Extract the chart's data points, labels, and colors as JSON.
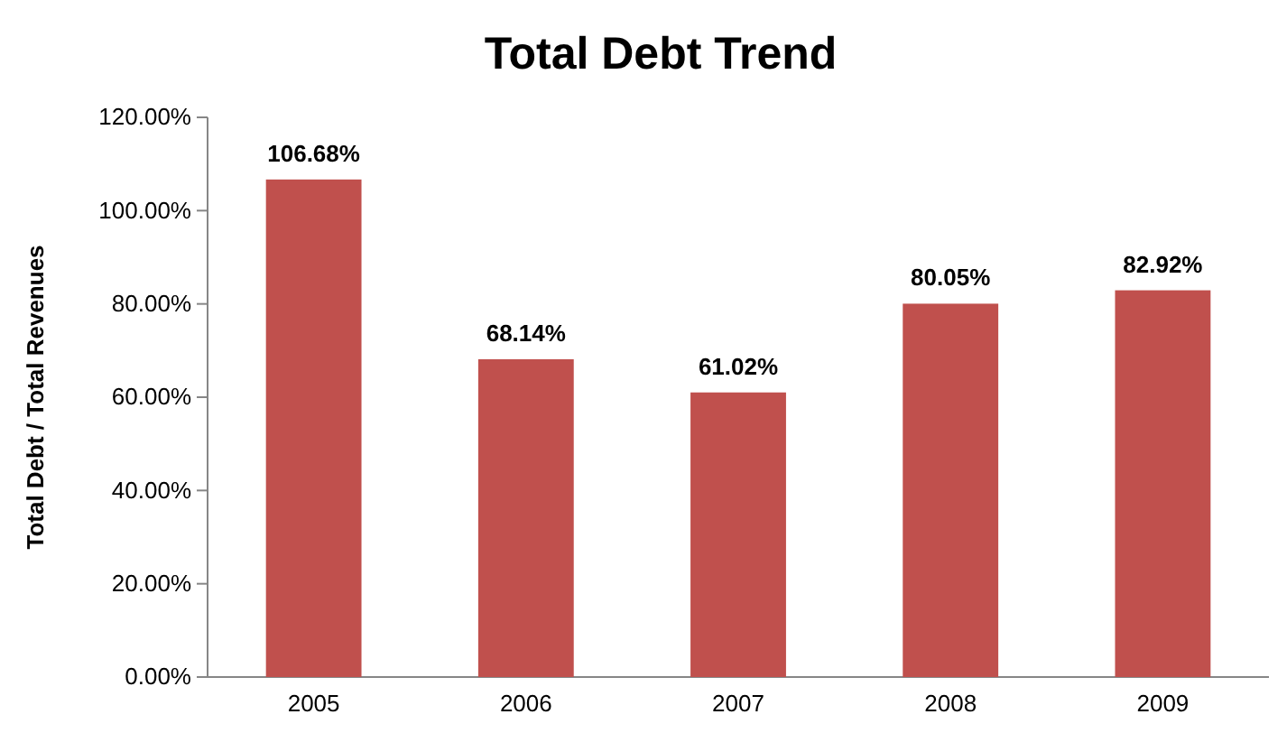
{
  "chart_data": {
    "type": "bar",
    "title": "Total Debt Trend",
    "ylabel": "Total Debt / Total Revenues",
    "categories": [
      "2005",
      "2006",
      "2007",
      "2008",
      "2009"
    ],
    "values": [
      106.68,
      68.14,
      61.02,
      80.05,
      82.92
    ],
    "value_labels": [
      "106.68%",
      "68.14%",
      "61.02%",
      "80.05%",
      "82.92%"
    ],
    "color": "#c0504d",
    "ylim": [
      0,
      120
    ],
    "yticks": [
      {
        "value": 0,
        "label": "0.00%"
      },
      {
        "value": 20,
        "label": "20.00%"
      },
      {
        "value": 40,
        "label": "40.00%"
      },
      {
        "value": 60,
        "label": "60.00%"
      },
      {
        "value": 80,
        "label": "80.00%"
      },
      {
        "value": 100,
        "label": "100.00%"
      },
      {
        "value": 120,
        "label": "120.00%"
      }
    ],
    "grid": false
  }
}
